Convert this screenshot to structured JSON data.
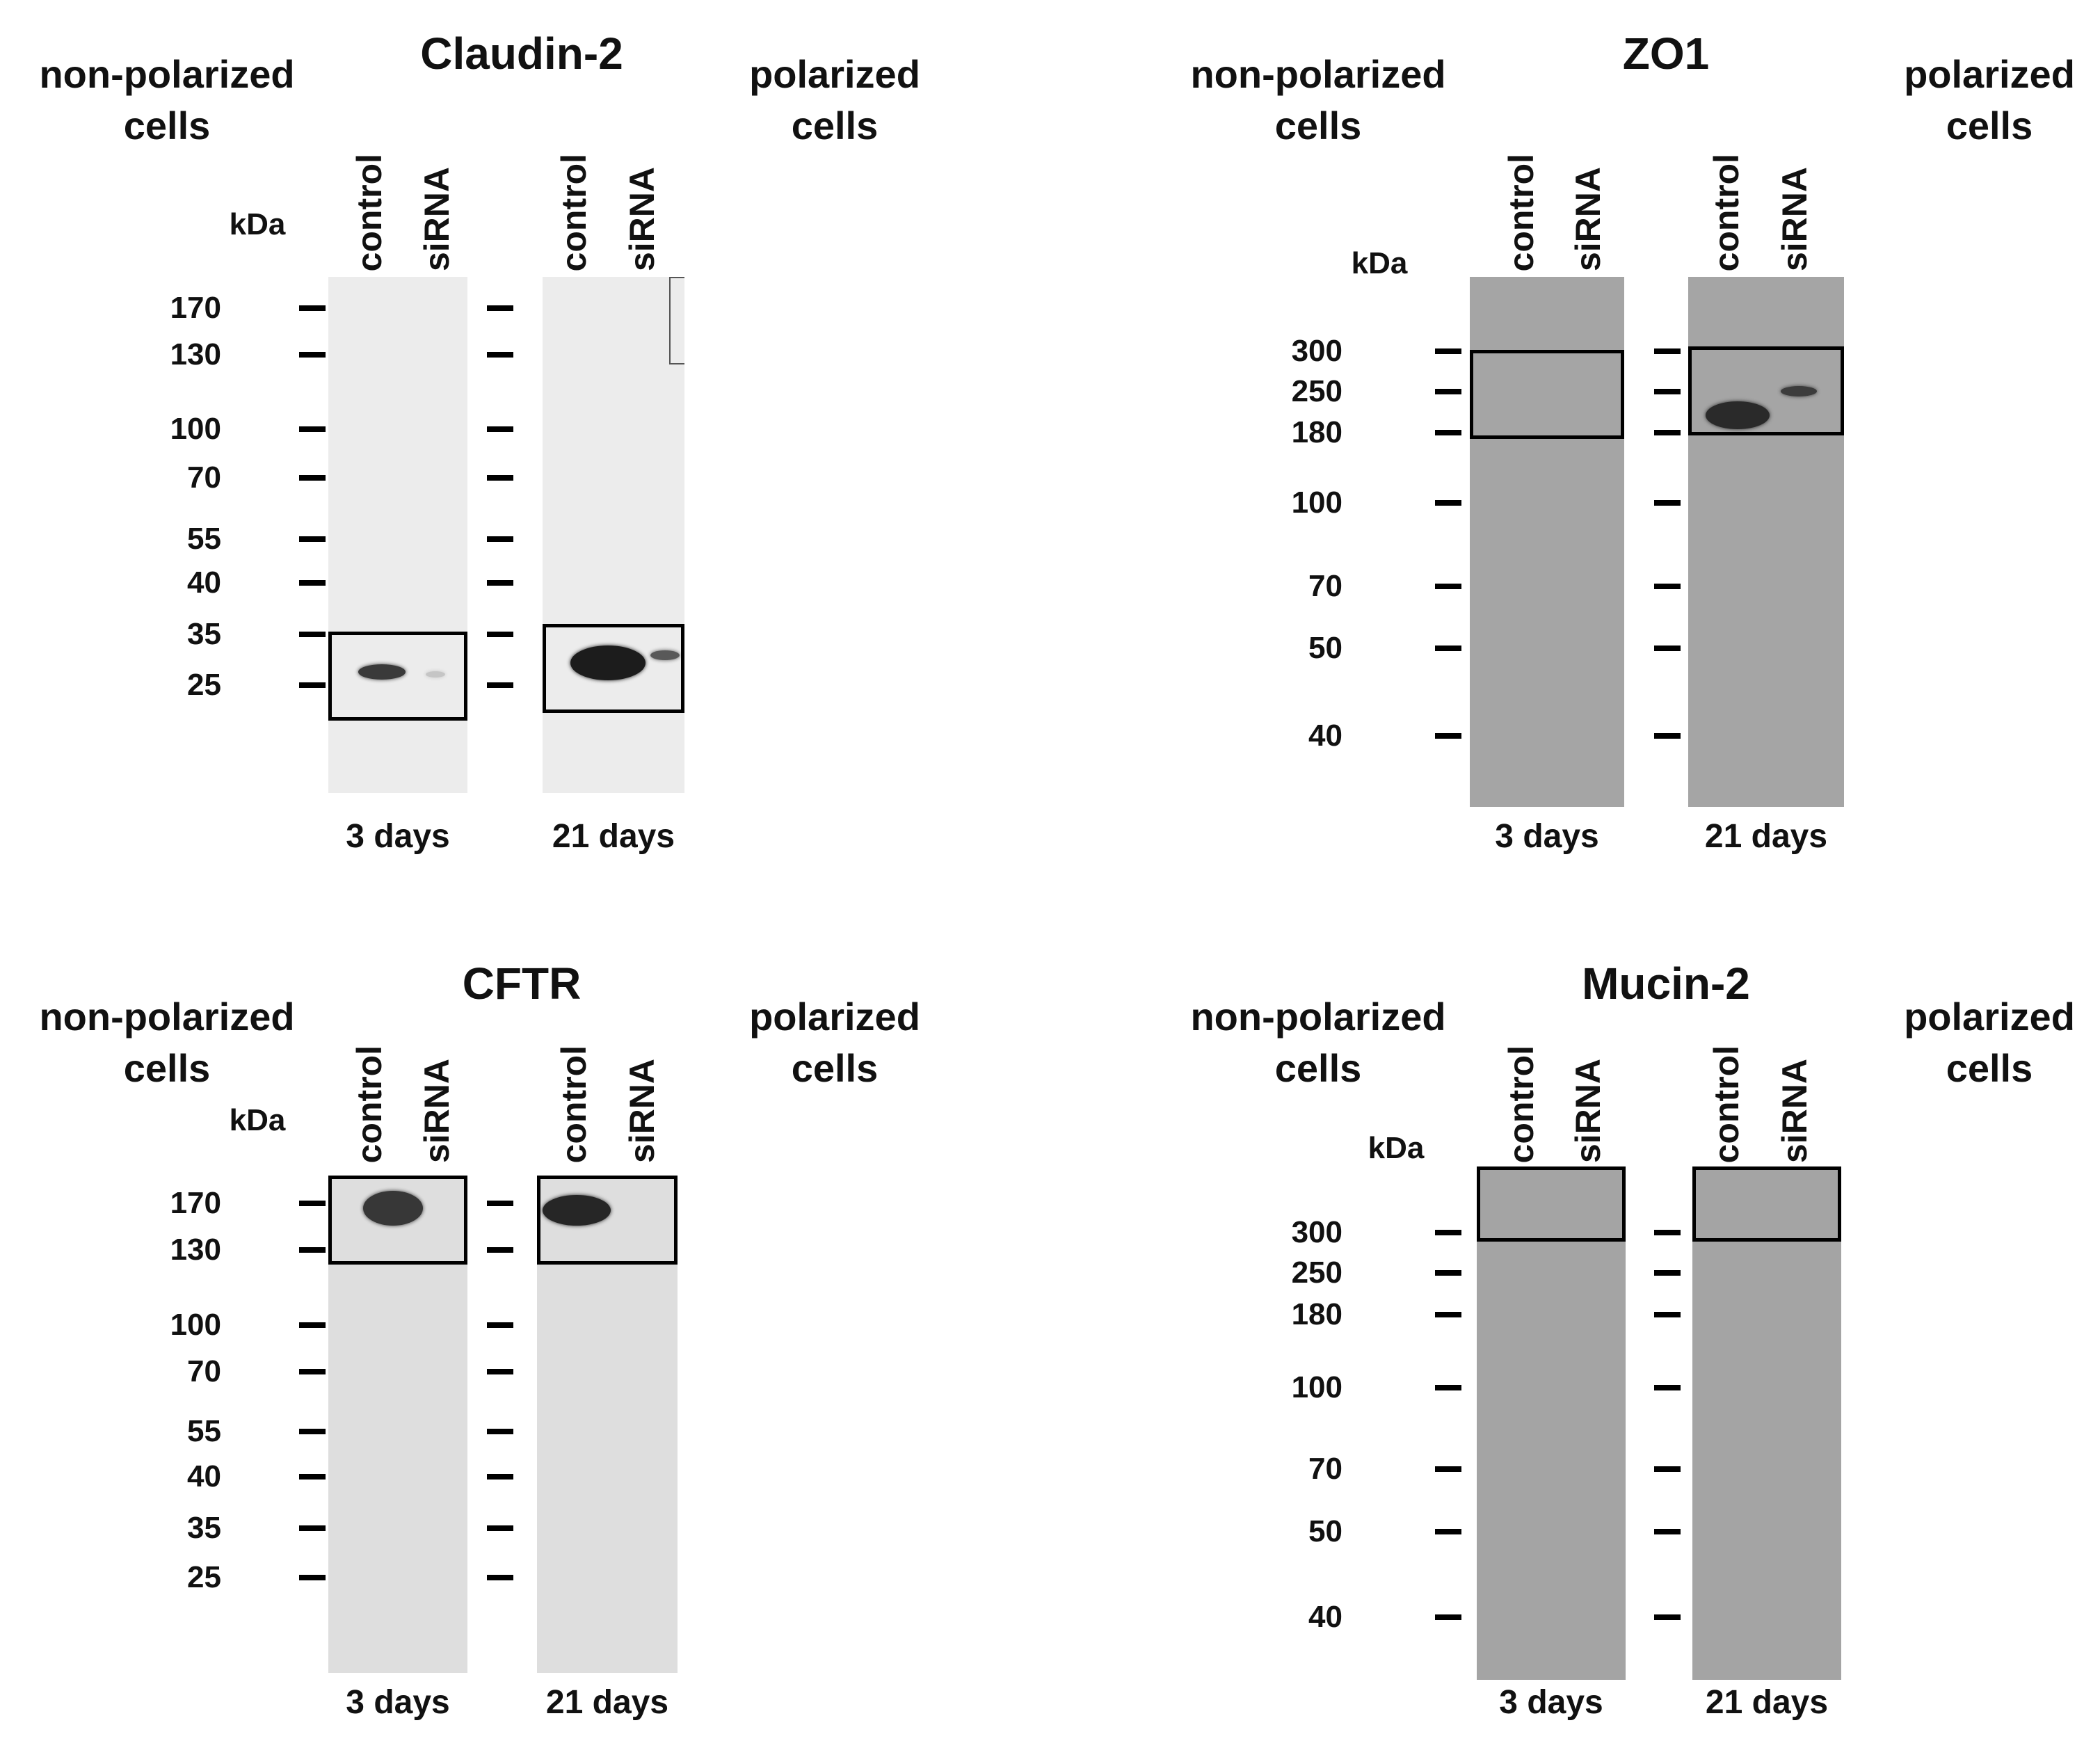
{
  "panels": [
    {
      "key": "claudin2",
      "title": "Claudin-2",
      "left_label": [
        "non-polarized",
        "cells"
      ],
      "right_label": [
        "polarized",
        "cells"
      ],
      "kda": "kDa",
      "lanes": [
        "control",
        "siRNA",
        "control",
        "siRNA"
      ],
      "markers": [
        "170",
        "130",
        "100",
        "70",
        "55",
        "40",
        "35",
        "25"
      ],
      "timepoints": [
        "3 days",
        "21 days"
      ],
      "blot_color": "#ececec",
      "band_color": "#1c1c1c"
    },
    {
      "key": "zo1",
      "title": "ZO1",
      "left_label": [
        "non-polarized",
        "cells"
      ],
      "right_label": [
        "polarized",
        "cells"
      ],
      "kda": "kDa",
      "lanes": [
        "control",
        "siRNA",
        "control",
        "siRNA"
      ],
      "markers": [
        "300",
        "250",
        "180",
        "100",
        "70",
        "50",
        "40"
      ],
      "timepoints": [
        "3 days",
        "21 days"
      ],
      "blot_color": "#a5a5a5",
      "band_color": "#2a2a2a"
    },
    {
      "key": "cftr",
      "title": "CFTR",
      "left_label": [
        "non-polarized",
        "cells"
      ],
      "right_label": [
        "polarized",
        "cells"
      ],
      "kda": "kDa",
      "lanes": [
        "control",
        "siRNA",
        "control",
        "siRNA"
      ],
      "markers": [
        "170",
        "130",
        "100",
        "70",
        "55",
        "40",
        "35",
        "25"
      ],
      "timepoints": [
        "3 days",
        "21 days"
      ],
      "blot_color": "#dedede",
      "band_color": "#262626"
    },
    {
      "key": "mucin2",
      "title": "Mucin-2",
      "left_label": [
        "non-polarized",
        "cells"
      ],
      "right_label": [
        "polarized",
        "cells"
      ],
      "kda": "kDa",
      "lanes": [
        "control",
        "siRNA",
        "control",
        "siRNA"
      ],
      "markers": [
        "300",
        "250",
        "180",
        "100",
        "70",
        "50",
        "40"
      ],
      "timepoints": [
        "3 days",
        "21 days"
      ],
      "blot_color": "#a4a4a4",
      "band_color": "#2a2a2a"
    }
  ]
}
